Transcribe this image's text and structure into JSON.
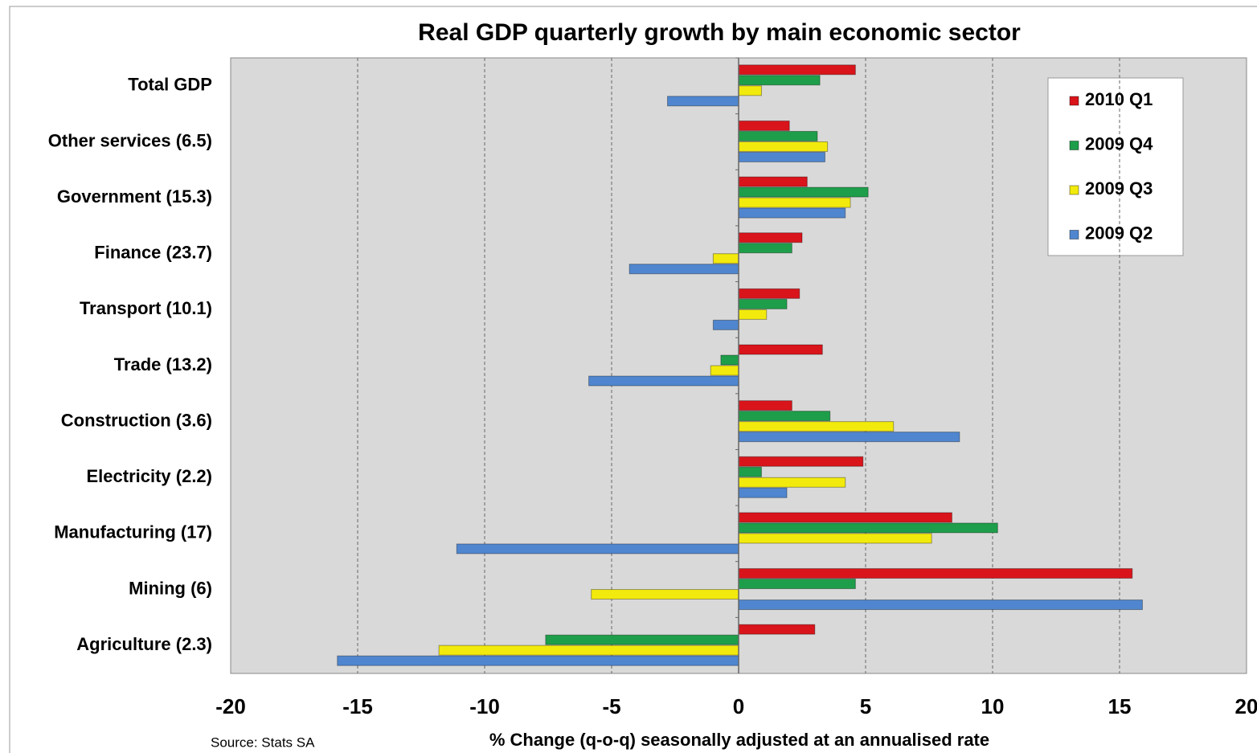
{
  "chart_data": {
    "type": "hbar",
    "title": "Real GDP quarterly growth by main economic sector",
    "x_label": "% Change (q-o-q)  seasonally adjusted at an annualised rate",
    "source": "Source: Stats SA",
    "categories": [
      "Total GDP",
      "Other services (6.5)",
      "Government (15.3)",
      "Finance  (23.7)",
      "Transport (10.1)",
      "Trade (13.2)",
      "Construction (3.6)",
      "Electricity (2.2)",
      "Manufacturing (17)",
      "Mining (6)",
      "Agriculture (2.3)"
    ],
    "series": [
      {
        "name": "2010 Q1",
        "color": "#d9141b",
        "values": [
          4.6,
          2.0,
          2.7,
          2.5,
          2.4,
          3.3,
          2.1,
          4.9,
          8.4,
          15.5,
          3.0
        ]
      },
      {
        "name": "2009 Q4",
        "color": "#1e9e4a",
        "values": [
          3.2,
          3.1,
          5.1,
          2.1,
          1.9,
          -0.7,
          3.6,
          0.9,
          10.2,
          4.6,
          -7.6
        ]
      },
      {
        "name": "2009 Q3",
        "color": "#f2ea0c",
        "values": [
          0.9,
          3.5,
          4.4,
          -1.0,
          1.1,
          -1.1,
          6.1,
          4.2,
          7.6,
          -5.8,
          -11.8
        ]
      },
      {
        "name": "2009 Q2",
        "color": "#4f86cf",
        "values": [
          -2.8,
          3.4,
          4.2,
          -4.3,
          -1.0,
          -5.9,
          8.7,
          1.9,
          -11.1,
          15.9,
          -15.8
        ]
      }
    ],
    "xlim": [
      -20,
      20
    ],
    "xticks": [
      -20,
      -15,
      -10,
      -5,
      0,
      5,
      10,
      15,
      20
    ],
    "grid": true,
    "legend": "top-right"
  }
}
